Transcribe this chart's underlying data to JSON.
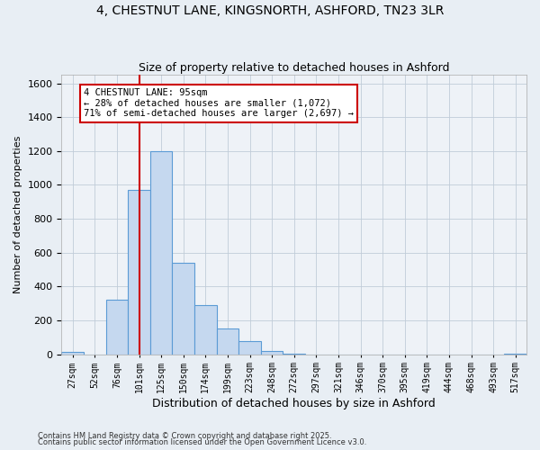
{
  "title_line1": "4, CHESTNUT LANE, KINGSNORTH, ASHFORD, TN23 3LR",
  "title_line2": "Size of property relative to detached houses in Ashford",
  "xlabel": "Distribution of detached houses by size in Ashford",
  "ylabel": "Number of detached properties",
  "footnote1": "Contains HM Land Registry data © Crown copyright and database right 2025.",
  "footnote2": "Contains public sector information licensed under the Open Government Licence v3.0.",
  "bar_labels": [
    "27sqm",
    "52sqm",
    "76sqm",
    "101sqm",
    "125sqm",
    "150sqm",
    "174sqm",
    "199sqm",
    "223sqm",
    "248sqm",
    "272sqm",
    "297sqm",
    "321sqm",
    "346sqm",
    "370sqm",
    "395sqm",
    "419sqm",
    "444sqm",
    "468sqm",
    "493sqm",
    "517sqm"
  ],
  "bar_values": [
    12,
    0,
    320,
    970,
    1200,
    540,
    290,
    150,
    80,
    18,
    5,
    0,
    0,
    0,
    0,
    0,
    0,
    0,
    0,
    0,
    5
  ],
  "bar_color": "#c5d8ef",
  "bar_edge_color": "#5b9bd5",
  "vline_x": 3,
  "vline_color": "#cc0000",
  "annotation_text": "4 CHESTNUT LANE: 95sqm\n← 28% of detached houses are smaller (1,072)\n71% of semi-detached houses are larger (2,697) →",
  "annotation_box_color": "#cc0000",
  "annotation_text_color": "#000000",
  "ylim": [
    0,
    1650
  ],
  "yticks": [
    0,
    200,
    400,
    600,
    800,
    1000,
    1200,
    1400,
    1600
  ],
  "bg_color": "#e8eef4",
  "plot_bg_color": "#eef2f7",
  "grid_color": "#c0ccd8"
}
